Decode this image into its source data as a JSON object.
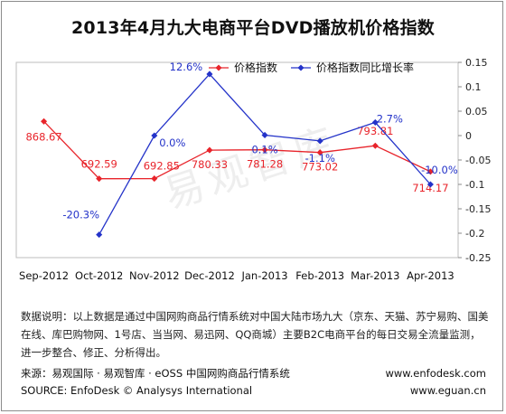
{
  "chart_data": {
    "type": "line",
    "title": "2013年4月九大电商平台DVD播放机价格指数",
    "categories": [
      "Sep-2012",
      "Oct-2012",
      "Nov-2012",
      "Dec-2012",
      "Jan-2013",
      "Feb-2013",
      "Mar-2013",
      "Apr-2013"
    ],
    "series": [
      {
        "name": "价格指数",
        "axis": "left",
        "color": "#e8242b",
        "values": [
          868.67,
          692.59,
          692.85,
          780.33,
          781.28,
          773.02,
          793.81,
          714.17
        ],
        "labels": [
          "868.67",
          "692.59",
          "692.85",
          "780.33",
          "781.28",
          "773.02",
          "793.81",
          "714.17"
        ]
      },
      {
        "name": "价格指数同比增长率",
        "axis": "right",
        "color": "#2433c9",
        "values": [
          null,
          -0.203,
          0.0,
          0.126,
          0.001,
          -0.011,
          0.027,
          -0.1
        ],
        "labels": [
          "",
          "-20.3%",
          "0.0%",
          "12.6%",
          "0.1%",
          "-1.1%",
          "2.7%",
          "-10.0%"
        ]
      }
    ],
    "y2_range": [
      -0.25,
      0.15
    ],
    "y2_ticks": [
      "0.15",
      "0.1",
      "0.05",
      "0",
      "-0.05",
      "-0.1",
      "-0.15",
      "-0.2",
      "-0.25"
    ],
    "legend_position": "top",
    "grid": false
  },
  "watermark": "易观智库",
  "note": "数据说明：以上数据是通过中国网购商品行情系统对中国大陆市场九大（京东、天猫、苏宁易购、国美在线、库巴购物网、1号店、当当网、易迅网、QQ商城）主要B2C电商平台的每日交易全流量监测，进一步整合、修正、分析得出。",
  "source": {
    "line1": "来源：易观国际 · 易观智库 · eOSS 中国网购商品行情系统",
    "line2": "SOURCE: EnfoDesk © Analysys International",
    "url1": "www.enfodesk.com",
    "url2": "www.eguan.cn"
  }
}
